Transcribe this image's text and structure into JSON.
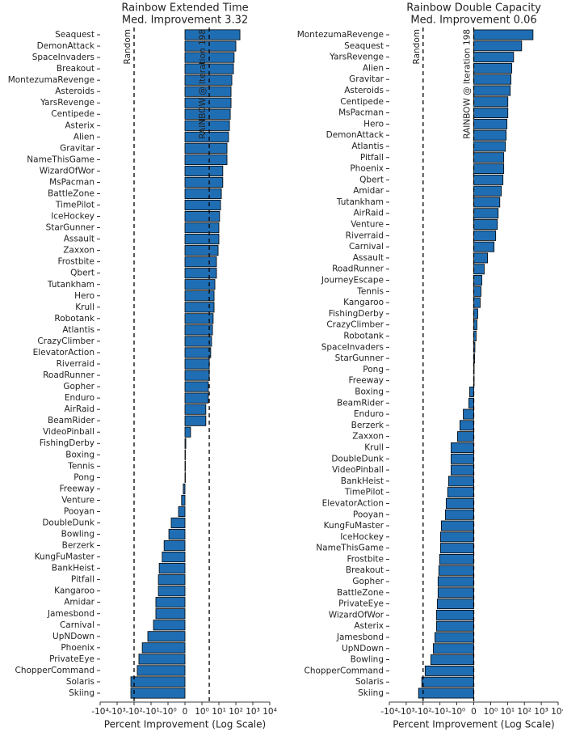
{
  "chart_data": [
    {
      "type": "bar",
      "orientation": "horizontal",
      "title": "Rainbow Extended Time",
      "subtitle": "Med. Improvement 3.32",
      "xlabel": "Percent Improvement (Log Scale)",
      "xscale": "symlog",
      "color": "#1f6eb4",
      "categories": [
        "Seaquest",
        "DemonAttack",
        "SpaceInvaders",
        "Breakout",
        "MontezumaRevenge",
        "Asteroids",
        "YarsRevenge",
        "Centipede",
        "Asterix",
        "Alien",
        "Gravitar",
        "NameThisGame",
        "WizardOfWor",
        "MsPacman",
        "BattleZone",
        "TimePilot",
        "IceHockey",
        "StarGunner",
        "Assault",
        "Zaxxon",
        "Frostbite",
        "Qbert",
        "Tutankham",
        "Hero",
        "Krull",
        "Robotank",
        "Atlantis",
        "CrazyClimber",
        "ElevatorAction",
        "Riverraid",
        "RoadRunner",
        "Gopher",
        "Enduro",
        "AirRaid",
        "BeamRider",
        "VideoPinball",
        "FishingDerby",
        "Boxing",
        "Tennis",
        "Pong",
        "Freeway",
        "Venture",
        "Pooyan",
        "DoubleDunk",
        "Bowling",
        "Berzerk",
        "KungFuMaster",
        "BankHeist",
        "Pitfall",
        "Kangaroo",
        "Amidar",
        "Jamesbond",
        "Carnival",
        "UpNDown",
        "Phoenix",
        "PrivateEye",
        "ChopperCommand",
        "Solaris",
        "Skiing"
      ],
      "values": [
        174,
        100,
        79,
        72,
        58,
        52,
        52,
        47,
        42,
        37,
        30,
        30,
        17,
        17,
        14,
        12.5,
        11,
        10,
        10,
        9,
        7.2,
        7.2,
        5.8,
        5.2,
        5.2,
        4.6,
        4.2,
        3.7,
        3.3,
        2.7,
        2.7,
        2.4,
        2.4,
        1.7,
        1.7,
        0.33,
        0.05,
        0.02,
        0.01,
        0,
        -0.1,
        -0.2,
        -0.38,
        -0.81,
        -0.95,
        -1.7,
        -2.2,
        -3.3,
        -3.7,
        -3.7,
        -5.2,
        -5.2,
        -7.2,
        -15.5,
        -33,
        -52,
        -65,
        -155,
        -155
      ],
      "xlim": [
        -10000,
        10000
      ],
      "xticks": [
        {
          "value": -10000,
          "label": "-10⁴"
        },
        {
          "value": -1000,
          "label": "-10³"
        },
        {
          "value": -100,
          "label": "-10²"
        },
        {
          "value": -10,
          "label": "-10¹"
        },
        {
          "value": -1,
          "label": "-10⁰"
        },
        0,
        {
          "value": 1,
          "label": "10⁰"
        },
        {
          "value": 10,
          "label": "10¹"
        },
        {
          "value": 100,
          "label": "10²"
        },
        {
          "value": 1000,
          "label": "10³"
        },
        {
          "value": 10000,
          "label": "10⁴"
        }
      ],
      "annotations": [
        {
          "text": "Random",
          "value": -100
        },
        {
          "text": "RAINBOW @ Iteration 198",
          "value": 2.7
        }
      ]
    },
    {
      "type": "bar",
      "orientation": "horizontal",
      "title": "Rainbow Double Capacity",
      "subtitle": "Med. Improvement 0.06",
      "xlabel": "Percent Improvement (Log Scale)",
      "xscale": "symlog",
      "color": "#1f6eb4",
      "categories": [
        "MontezumaRevenge",
        "Seaquest",
        "YarsRevenge",
        "Alien",
        "Gravitar",
        "Asteroids",
        "Centipede",
        "MsPacman",
        "Hero",
        "DemonAttack",
        "Atlantis",
        "Pitfall",
        "Phoenix",
        "Qbert",
        "Amidar",
        "Tutankham",
        "AirRaid",
        "Venture",
        "Riverraid",
        "Carnival",
        "Assault",
        "RoadRunner",
        "JourneyEscape",
        "Tennis",
        "Kangaroo",
        "FishingDerby",
        "CrazyClimber",
        "Robotank",
        "SpaceInvaders",
        "StarGunner",
        "Pong",
        "Freeway",
        "Boxing",
        "BeamRider",
        "Enduro",
        "Berzerk",
        "Zaxxon",
        "Krull",
        "DoubleDunk",
        "VideoPinball",
        "BankHeist",
        "TimePilot",
        "ElevatorAction",
        "Pooyan",
        "KungFuMaster",
        "IceHockey",
        "NameThisGame",
        "Frostbite",
        "Breakout",
        "Gopher",
        "BattleZone",
        "PrivateEye",
        "WizardOfWor",
        "Asterix",
        "Jamesbond",
        "UpNDown",
        "Bowling",
        "ChopperCommand",
        "Solaris",
        "Skiing"
      ],
      "values": [
        324,
        69,
        23,
        18,
        16,
        14.5,
        10.5,
        10.5,
        9.3,
        8.3,
        7.5,
        6,
        6,
        5.4,
        4.3,
        3.5,
        2.8,
        2.5,
        2,
        1.6,
        0.82,
        0.62,
        0.48,
        0.43,
        0.38,
        0.24,
        0.19,
        0.14,
        0.07,
        0.05,
        0.02,
        0.01,
        -0.24,
        -0.29,
        -0.62,
        -0.82,
        -0.96,
        -2.2,
        -2.2,
        -2.2,
        -3.1,
        -3.5,
        -4.3,
        -4.8,
        -8.3,
        -9.3,
        -9.3,
        -10.5,
        -11.7,
        -13,
        -13,
        -14.5,
        -16,
        -16,
        -20,
        -25,
        -35,
        -76,
        -120,
        -186
      ],
      "xlim": [
        -10000,
        10000
      ],
      "xticks": [
        {
          "value": -10000,
          "label": "-10⁴"
        },
        {
          "value": -1000,
          "label": "-10³"
        },
        {
          "value": -100,
          "label": "-10²"
        },
        {
          "value": -10,
          "label": "-10¹"
        },
        {
          "value": -1,
          "label": "-10⁰"
        },
        0,
        {
          "value": 1,
          "label": "10⁰"
        },
        {
          "value": 10,
          "label": "10¹"
        },
        {
          "value": 100,
          "label": "10²"
        },
        {
          "value": 1000,
          "label": "10³"
        },
        {
          "value": 10000,
          "label": "10⁴"
        }
      ],
      "annotations": [
        {
          "text": "Random",
          "value": -100
        },
        {
          "text": "RAINBOW @ Iteration 198",
          "value": 0
        }
      ]
    }
  ]
}
